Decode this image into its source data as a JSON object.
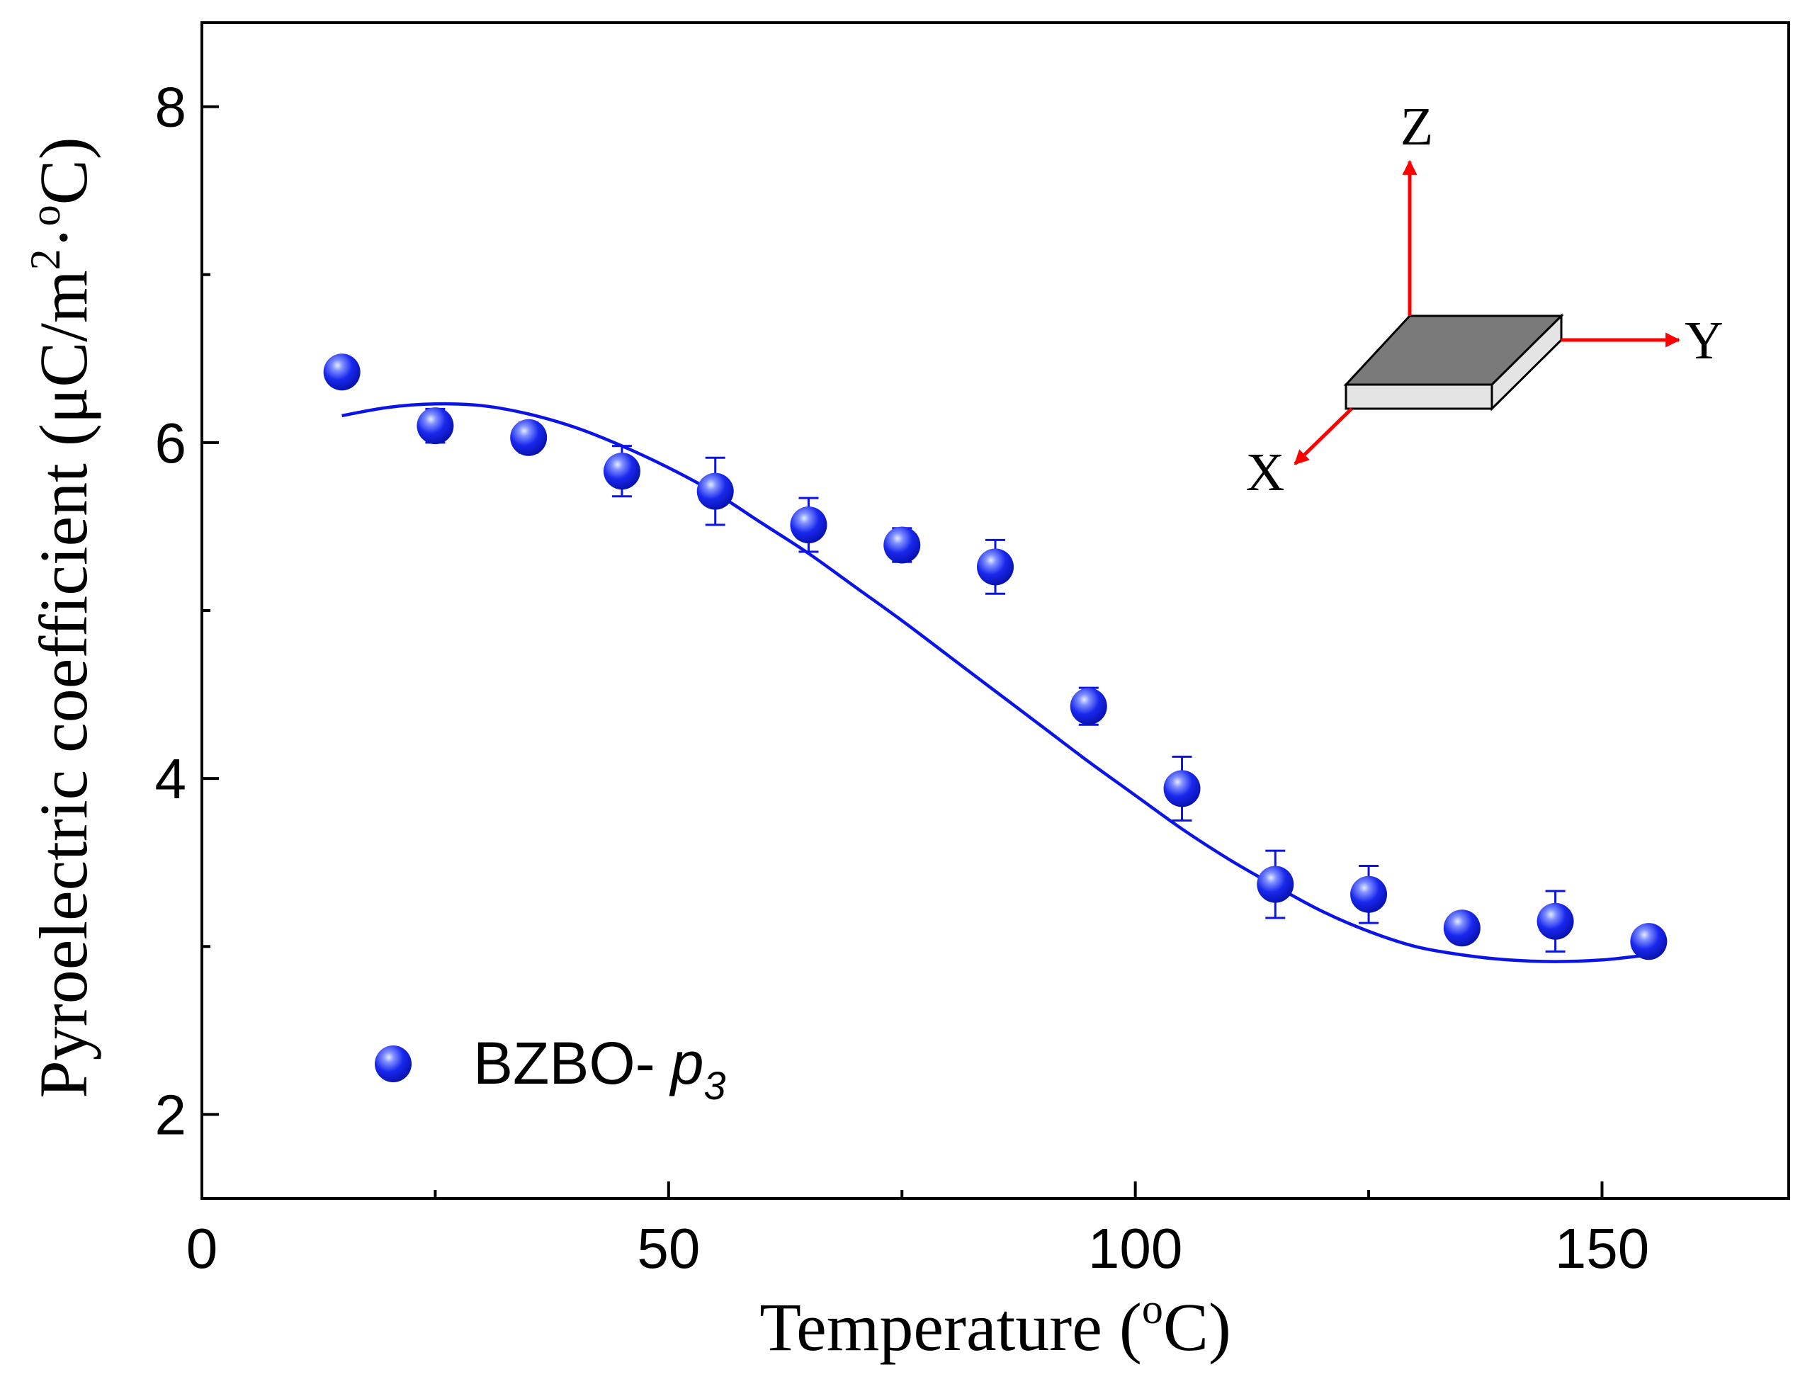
{
  "chart_data": {
    "type": "scatter",
    "xlabel": "Temperature (°C)",
    "xlabel_parts": {
      "before": "Temperature (",
      "sup": "o",
      "after": "C)"
    },
    "ylabel_parts": {
      "before": "Pyroelectric coefficient (μC/m",
      "sup1": "2",
      "middle": "·",
      "sup2": "o",
      "after": "C)"
    },
    "xlim": [
      0,
      170
    ],
    "ylim": [
      1.5,
      8.5
    ],
    "xticks": [
      0,
      50,
      100,
      150
    ],
    "yticks": [
      2,
      4,
      6,
      8
    ],
    "xtick_labels": [
      "0",
      "50",
      "100",
      "150"
    ],
    "ytick_labels": [
      "2",
      "4",
      "6",
      "8"
    ],
    "series": [
      {
        "name": "BZBO- p3",
        "legend_main": "BZBO-",
        "legend_italic": "p",
        "legend_sub": "3",
        "color": "#0a14e6",
        "x": [
          15,
          25,
          35,
          45,
          55,
          65,
          75,
          85,
          95,
          105,
          115,
          125,
          135,
          145,
          155
        ],
        "y": [
          6.42,
          6.1,
          6.03,
          5.83,
          5.71,
          5.51,
          5.39,
          5.26,
          4.43,
          3.94,
          3.37,
          3.31,
          3.11,
          3.15,
          3.03
        ],
        "err": [
          0.05,
          0.1,
          0.09,
          0.15,
          0.2,
          0.16,
          0.1,
          0.16,
          0.11,
          0.19,
          0.2,
          0.17,
          0.06,
          0.18,
          0.04
        ]
      }
    ],
    "fit": {
      "color": "#0a14e6",
      "x": [
        15,
        20,
        25,
        30,
        35,
        40,
        45,
        50,
        55,
        60,
        65,
        70,
        75,
        80,
        85,
        90,
        95,
        100,
        105,
        110,
        115,
        120,
        125,
        130,
        135,
        140,
        145,
        150,
        155
      ],
      "y": [
        6.16,
        6.21,
        6.23,
        6.22,
        6.17,
        6.09,
        5.98,
        5.85,
        5.7,
        5.52,
        5.34,
        5.14,
        4.94,
        4.73,
        4.52,
        4.31,
        4.1,
        3.9,
        3.7,
        3.52,
        3.36,
        3.21,
        3.09,
        3.0,
        2.95,
        2.92,
        2.91,
        2.92,
        2.95
      ]
    },
    "inset": {
      "x_label": "X",
      "y_label": "Y",
      "z_label": "Z",
      "arrow_color": "#ff0000",
      "top_color": "#7a7a7a",
      "side_color": "#e4e4e4"
    },
    "legend_position": "bottom-left"
  }
}
